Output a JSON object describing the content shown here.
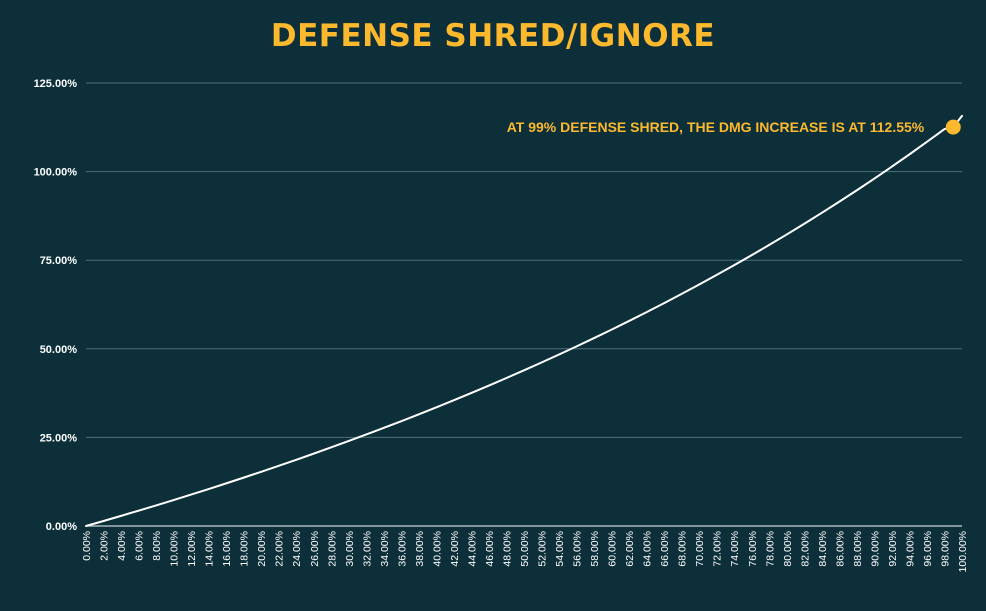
{
  "chart_data": {
    "type": "line",
    "title": "DEFENSE SHRED/IGNORE",
    "xlabel": "",
    "ylabel": "",
    "x": [
      0,
      2,
      4,
      6,
      8,
      10,
      12,
      14,
      16,
      18,
      20,
      22,
      24,
      26,
      28,
      30,
      32,
      34,
      36,
      38,
      40,
      42,
      44,
      46,
      48,
      50,
      52,
      54,
      56,
      58,
      60,
      62,
      64,
      66,
      68,
      70,
      72,
      74,
      76,
      78,
      80,
      82,
      84,
      86,
      88,
      90,
      92,
      94,
      96,
      98,
      99,
      100
    ],
    "x_tick_labels": [
      "0.00%",
      "2.00%",
      "4.00%",
      "6.00%",
      "8.00%",
      "10.00%",
      "12.00%",
      "14.00%",
      "16.00%",
      "18.00%",
      "20.00%",
      "22.00%",
      "24.00%",
      "26.00%",
      "28.00%",
      "30.00%",
      "32.00%",
      "34.00%",
      "36.00%",
      "38.00%",
      "40.00%",
      "42.00%",
      "44.00%",
      "46.00%",
      "48.00%",
      "50.00%",
      "52.00%",
      "54.00%",
      "56.00%",
      "58.00%",
      "60.00%",
      "62.00%",
      "64.00%",
      "66.00%",
      "68.00%",
      "70.00%",
      "72.00%",
      "74.00%",
      "76.00%",
      "78.00%",
      "80.00%",
      "82.00%",
      "84.00%",
      "86.00%",
      "88.00%",
      "90.00%",
      "92.00%",
      "94.00%",
      "96.00%",
      "98.00%",
      "100.00%"
    ],
    "x_tick_values": [
      0,
      2,
      4,
      6,
      8,
      10,
      12,
      14,
      16,
      18,
      20,
      22,
      24,
      26,
      28,
      30,
      32,
      34,
      36,
      38,
      40,
      42,
      44,
      46,
      48,
      50,
      52,
      54,
      56,
      58,
      60,
      62,
      64,
      66,
      68,
      70,
      72,
      74,
      76,
      78,
      80,
      82,
      84,
      86,
      88,
      90,
      92,
      94,
      96,
      98,
      100
    ],
    "series": [
      {
        "values": [
          0,
          1.41,
          2.86,
          4.32,
          5.81,
          7.33,
          8.87,
          10.43,
          12.03,
          13.65,
          15.3,
          16.97,
          18.68,
          20.42,
          22.19,
          23.99,
          25.82,
          27.69,
          29.59,
          31.52,
          33.49,
          35.5,
          37.55,
          39.64,
          41.76,
          43.93,
          46.14,
          48.39,
          50.69,
          53.03,
          55.42,
          57.86,
          60.35,
          62.9,
          65.49,
          68.14,
          70.85,
          73.61,
          76.44,
          79.32,
          82.27,
          85.29,
          88.37,
          91.52,
          94.74,
          98.04,
          101.41,
          104.86,
          108.39,
          112.01,
          112.55,
          115.71
        ],
        "color": "#ffffff"
      }
    ],
    "ylim": [
      0,
      125
    ],
    "y_ticks": [
      0,
      25,
      50,
      75,
      100,
      125
    ],
    "y_tick_labels": [
      "0.00%",
      "25.00%",
      "50.00%",
      "75.00%",
      "100.00%",
      "125.00%"
    ],
    "grid": true,
    "highlight_point": {
      "x": 99,
      "y": 112.55,
      "color": "#fdb92e"
    },
    "annotation": "AT 99% DEFENSE SHRED, THE DMG INCREASE IS AT 112.55%",
    "colors": {
      "background": "#0d2f3a",
      "accent": "#fdb92e",
      "line": "#ffffff",
      "grid": "#4e6f78"
    }
  }
}
